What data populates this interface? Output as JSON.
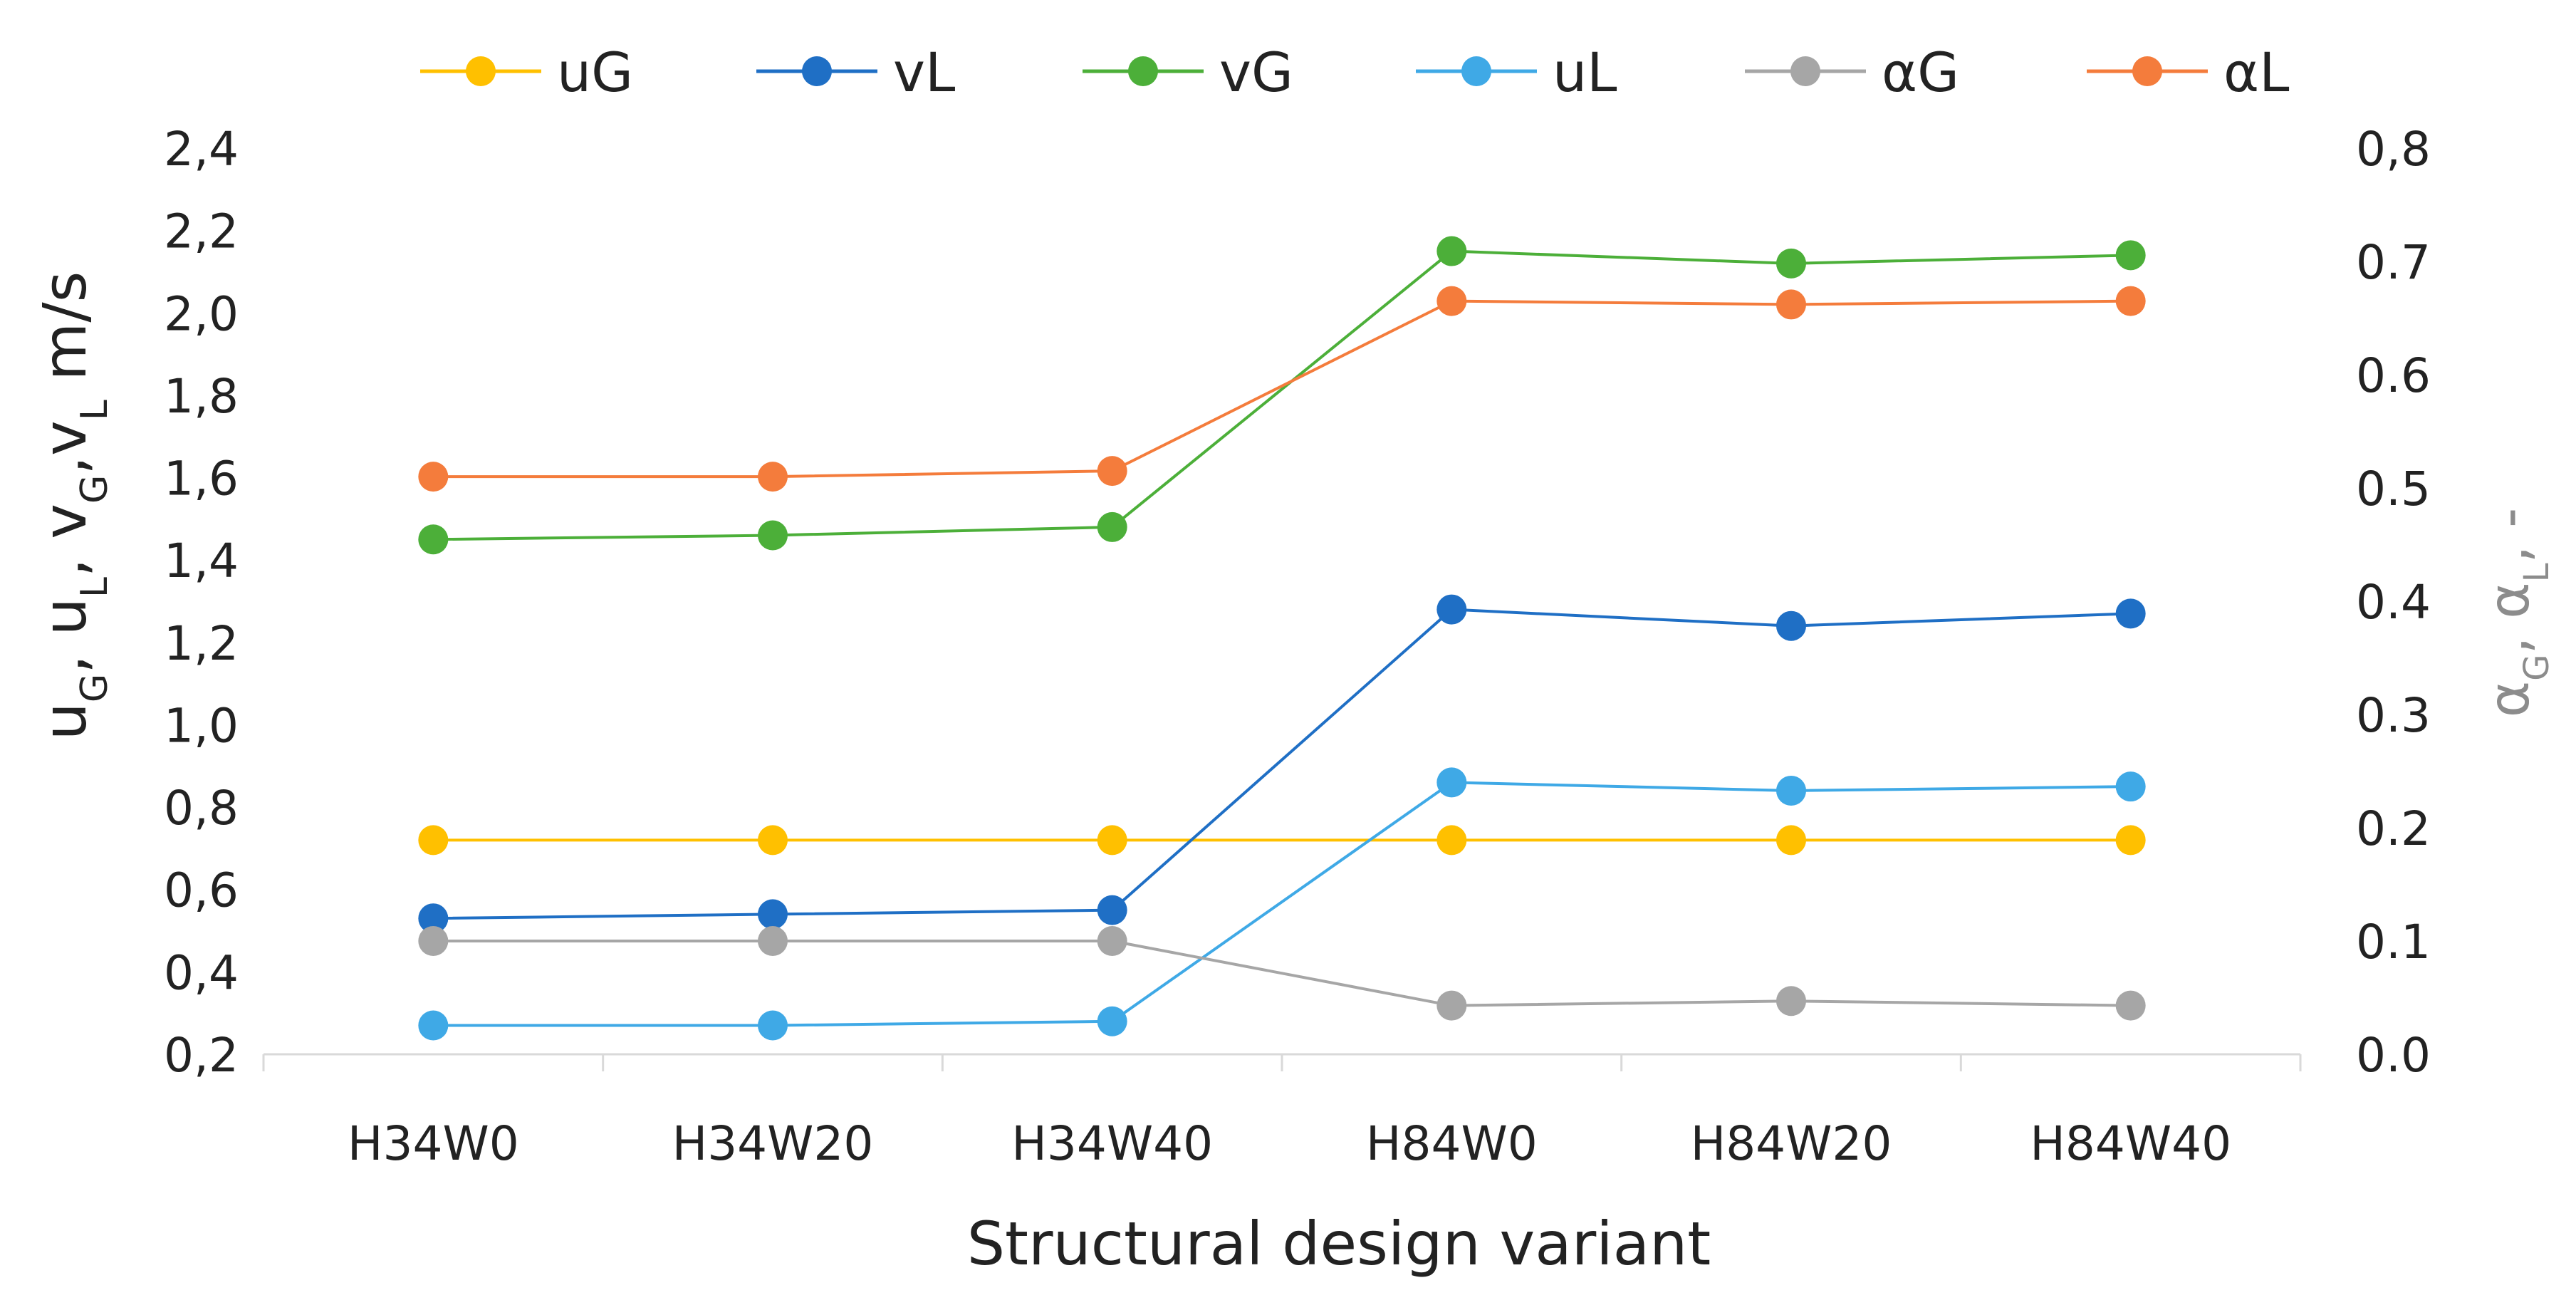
{
  "chart_data": {
    "type": "line",
    "title": "",
    "xlabel": "Structural  design variant",
    "ylabel": {
      "parts": [
        {
          "t": "u",
          "sub": "G"
        },
        {
          "t": ", "
        },
        {
          "t": "u",
          "sub": "L"
        },
        {
          "t": ", "
        },
        {
          "t": "v",
          "sub": "G"
        },
        {
          "t": ","
        },
        {
          "t": "v",
          "sub": "L"
        },
        {
          "t": " m/s"
        }
      ]
    },
    "y2label": {
      "parts": [
        {
          "t": "α",
          "sub": "G"
        },
        {
          "t": ", "
        },
        {
          "t": "α",
          "sub": "L"
        },
        {
          "t": ", -"
        }
      ]
    },
    "categories": [
      "H34W0",
      "H34W20",
      "H34W40",
      "H84W0",
      "H84W20",
      "H84W40"
    ],
    "ylim": [
      0.2,
      2.4
    ],
    "yticks": [
      "0,2",
      "0,4",
      "0,6",
      "0,8",
      "1,0",
      "1,2",
      "1,4",
      "1,6",
      "1,8",
      "2,0",
      "2,2",
      "2,4"
    ],
    "y2lim": [
      0.0,
      0.8
    ],
    "y2ticks": [
      "0.0",
      "0.1",
      "0.2",
      "0.3",
      "0.4",
      "0.5",
      "0.6",
      "0.7",
      "0,8"
    ],
    "legend_position": "top",
    "grid": false,
    "series": [
      {
        "name": "uG",
        "axis": "left",
        "color": "#FFC000",
        "values": [
          0.72,
          0.72,
          0.72,
          0.72,
          0.72,
          0.72
        ]
      },
      {
        "name": "vL",
        "axis": "left",
        "color": "#1F6FC5",
        "values": [
          0.53,
          0.54,
          0.55,
          1.28,
          1.24,
          1.27
        ]
      },
      {
        "name": "vG",
        "axis": "left",
        "color": "#4CAF39",
        "values": [
          1.45,
          1.46,
          1.48,
          2.15,
          2.12,
          2.14
        ]
      },
      {
        "name": "uL",
        "axis": "left",
        "color": "#3FA9E6",
        "values": [
          0.27,
          0.27,
          0.28,
          0.86,
          0.84,
          0.85
        ]
      },
      {
        "name": "αG",
        "axis": "right",
        "color": "#A6A6A6",
        "values": [
          0.1,
          0.1,
          0.1,
          0.043,
          0.047,
          0.043
        ]
      },
      {
        "name": "αL",
        "axis": "right",
        "color": "#F47C3C",
        "values": [
          0.51,
          0.51,
          0.515,
          0.665,
          0.662,
          0.665
        ]
      }
    ]
  }
}
